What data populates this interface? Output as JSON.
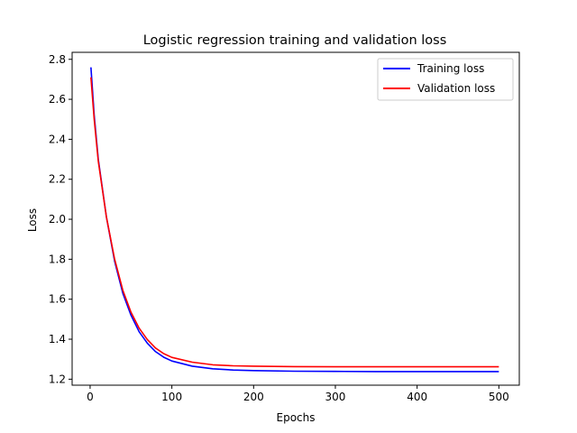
{
  "chart_data": {
    "type": "line",
    "title": "Logistic regression training and validation loss",
    "xlabel": "Epochs",
    "ylabel": "Loss",
    "xlim": [
      -22,
      525
    ],
    "ylim": [
      1.17,
      2.835
    ],
    "xticks": [
      0,
      100,
      200,
      300,
      400,
      500
    ],
    "yticks": [
      1.2,
      1.4,
      1.6,
      1.8,
      2.0,
      2.2,
      2.4,
      2.6,
      2.8
    ],
    "xtick_labels": [
      "0",
      "100",
      "200",
      "300",
      "400",
      "500"
    ],
    "ytick_labels": [
      "1.2",
      "1.4",
      "1.6",
      "1.8",
      "2.0",
      "2.2",
      "2.4",
      "2.6",
      "2.8"
    ],
    "grid": false,
    "legend": "top-right",
    "x": [
      1,
      5,
      10,
      20,
      30,
      40,
      50,
      60,
      70,
      80,
      90,
      100,
      125,
      150,
      175,
      200,
      250,
      300,
      350,
      400,
      450,
      500
    ],
    "series": [
      {
        "name": "Training loss",
        "color": "#0000ff",
        "values": [
          2.76,
          2.52,
          2.3,
          2.01,
          1.79,
          1.63,
          1.52,
          1.437,
          1.38,
          1.338,
          1.31,
          1.291,
          1.265,
          1.252,
          1.246,
          1.243,
          1.24,
          1.239,
          1.238,
          1.238,
          1.238,
          1.238
        ]
      },
      {
        "name": "Validation loss",
        "color": "#ff0000",
        "values": [
          2.71,
          2.5,
          2.29,
          2.01,
          1.8,
          1.645,
          1.535,
          1.455,
          1.398,
          1.356,
          1.328,
          1.309,
          1.285,
          1.272,
          1.267,
          1.265,
          1.263,
          1.262,
          1.262,
          1.262,
          1.262,
          1.262
        ]
      }
    ]
  }
}
